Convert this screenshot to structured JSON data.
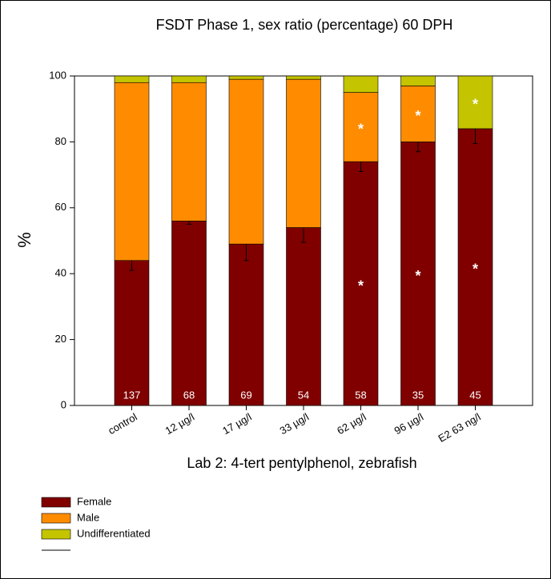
{
  "chart_data": {
    "type": "stacked_bar",
    "title": "FSDT Phase 1, sex ratio (percentage) 60 DPH",
    "x_label": "Lab 2: 4-tert pentylphenol, zebrafish",
    "y_label": "%",
    "categories": [
      "control",
      "12 µg/l",
      "17 µg/l",
      "33 µg/l",
      "62 µg/l",
      "96 µg/l",
      "E2 63 ng/l"
    ],
    "count_labels": [
      "137",
      "68",
      "69",
      "54",
      "58",
      "35",
      "45"
    ],
    "series": [
      {
        "name": "Female",
        "color": "#800000",
        "values": [
          44,
          56,
          49,
          54,
          74,
          80,
          84
        ],
        "errors": [
          3,
          1,
          5,
          4.5,
          3,
          3,
          4.5
        ],
        "significance": [
          null,
          null,
          null,
          null,
          "*",
          "*",
          "*"
        ]
      },
      {
        "name": "Male",
        "color": "#ff8c00",
        "values": [
          54,
          42,
          50,
          45,
          21,
          17,
          0
        ],
        "significance": [
          null,
          null,
          null,
          null,
          "*",
          "*",
          null
        ]
      },
      {
        "name": "Undifferentiated",
        "color": "#c4c400",
        "values": [
          2,
          2,
          1,
          1,
          5,
          3,
          16
        ],
        "significance": [
          null,
          null,
          null,
          null,
          null,
          null,
          "*"
        ]
      }
    ],
    "ylim": [
      0,
      100
    ],
    "yticks": [
      0,
      20,
      40,
      60,
      80,
      100
    ]
  }
}
